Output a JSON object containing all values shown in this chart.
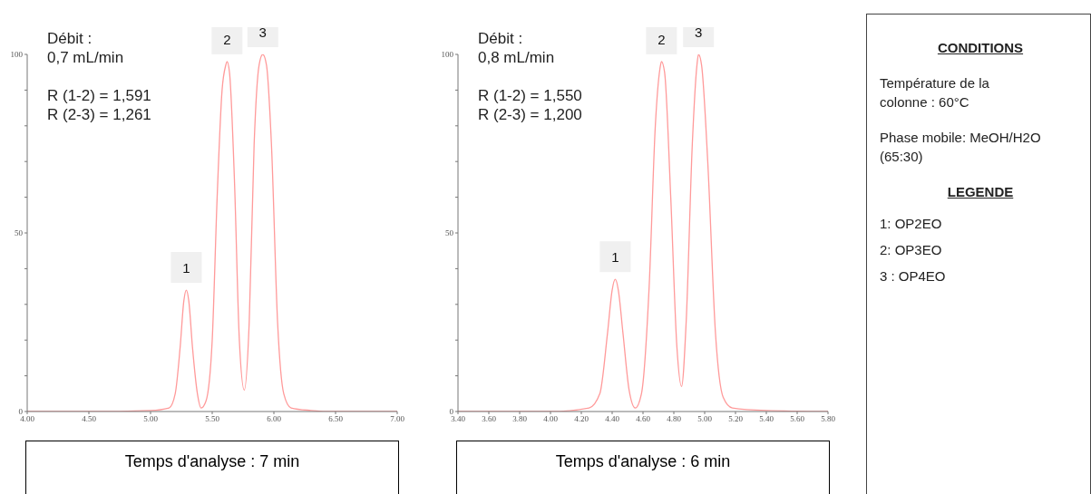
{
  "chart_data": [
    {
      "type": "line",
      "xlabel": "Temps d'analyse : 7 min",
      "xlim": [
        4,
        7
      ],
      "xticks": [
        {
          "value": 4,
          "label": "4.00"
        },
        {
          "value": 4.5,
          "label": "4.50"
        },
        {
          "value": 5,
          "label": "5.00"
        },
        {
          "value": 5.5,
          "label": "5.50"
        },
        {
          "value": 6,
          "label": "6.00"
        },
        {
          "value": 6.5,
          "label": "6.50"
        },
        {
          "value": 7,
          "label": "7.00"
        }
      ],
      "ylim": [
        0,
        100
      ],
      "yticks": [
        0,
        {
          "value": 10,
          "label": null
        },
        {
          "value": 20,
          "label": null
        },
        {
          "value": 30,
          "label": null
        },
        {
          "value": 40,
          "label": null
        },
        50,
        {
          "value": 60,
          "label": null
        },
        {
          "value": 70,
          "label": null
        },
        {
          "value": 80,
          "label": null
        },
        {
          "value": 90,
          "label": null
        },
        100
      ],
      "marker": "none",
      "line_style": "solid",
      "series": [
        {
          "color": "#ff9a9a",
          "x": [
            4.0,
            4.5,
            5.0,
            5.15,
            5.2,
            5.24,
            5.27,
            5.29,
            5.31,
            5.34,
            5.38,
            5.41,
            5.45,
            5.5,
            5.54,
            5.58,
            5.61,
            5.62,
            5.64,
            5.68,
            5.72,
            5.76,
            5.8,
            5.84,
            5.88,
            5.91,
            5.94,
            5.98,
            6.03,
            6.08,
            6.14,
            6.3,
            6.5,
            7.0
          ],
          "values": [
            0,
            0,
            0.3,
            1,
            5,
            18,
            31,
            34,
            31,
            18,
            5,
            1,
            3,
            20,
            60,
            90,
            97,
            98,
            95,
            65,
            20,
            6,
            25,
            75,
            97,
            100,
            97,
            75,
            25,
            5,
            1,
            0.3,
            0,
            0
          ]
        }
      ],
      "annotations": [
        "Débit :",
        "0,7 mL/min",
        "R (1-2) = 1,591",
        "R (2-3) = 1,261",
        {
          "text": "1",
          "x": 5.29,
          "y": 34
        },
        {
          "text": "2",
          "x": 5.62,
          "y": 98
        },
        {
          "text": "3",
          "x": 5.91,
          "y": 100
        }
      ]
    },
    {
      "type": "line",
      "xlabel": "Temps d'analyse : 6 min",
      "xlim": [
        3.4,
        5.8
      ],
      "xticks": [
        {
          "value": 3.4,
          "label": "3.40"
        },
        {
          "value": 3.6,
          "label": "3.60"
        },
        {
          "value": 3.8,
          "label": "3.80"
        },
        {
          "value": 4,
          "label": "4.00"
        },
        {
          "value": 4.2,
          "label": "4.20"
        },
        {
          "value": 4.4,
          "label": "4.40"
        },
        {
          "value": 4.6,
          "label": "4.60"
        },
        {
          "value": 4.8,
          "label": "4.80"
        },
        {
          "value": 5,
          "label": "5.00"
        },
        {
          "value": 5.2,
          "label": "5.20"
        },
        {
          "value": 5.4,
          "label": "5.40"
        },
        {
          "value": 5.6,
          "label": "5.60"
        },
        {
          "value": 5.8,
          "label": "5.80"
        }
      ],
      "ylim": [
        0,
        100
      ],
      "yticks": [
        0,
        {
          "value": 10,
          "label": null
        },
        {
          "value": 20,
          "label": null
        },
        {
          "value": 30,
          "label": null
        },
        {
          "value": 40,
          "label": null
        },
        50,
        {
          "value": 60,
          "label": null
        },
        {
          "value": 70,
          "label": null
        },
        {
          "value": 80,
          "label": null
        },
        {
          "value": 90,
          "label": null
        },
        100
      ],
      "marker": "none",
      "line_style": "solid",
      "series": [
        {
          "color": "#ff9a9a",
          "x": [
            3.4,
            4.0,
            4.25,
            4.32,
            4.37,
            4.4,
            4.42,
            4.44,
            4.47,
            4.51,
            4.55,
            4.59,
            4.64,
            4.68,
            4.71,
            4.72,
            4.74,
            4.78,
            4.82,
            4.85,
            4.88,
            4.92,
            4.95,
            4.96,
            4.98,
            5.02,
            5.07,
            5.12,
            5.18,
            5.4,
            5.8
          ],
          "values": [
            0,
            0,
            1,
            5,
            22,
            34,
            37,
            34,
            22,
            6,
            1,
            5,
            35,
            80,
            96,
            98,
            95,
            60,
            18,
            7,
            25,
            75,
            97,
            100,
            97,
            70,
            22,
            4,
            1,
            0.3,
            0
          ]
        }
      ],
      "annotations": [
        "Débit :",
        "0,8 mL/min",
        "R (1-2) = 1,550",
        "R (2-3) = 1,200",
        {
          "text": "1",
          "x": 4.42,
          "y": 37
        },
        {
          "text": "2",
          "x": 4.72,
          "y": 98
        },
        {
          "text": "3",
          "x": 4.96,
          "y": 100
        }
      ]
    },
    {
      "type": "other",
      "title": "CONDITIONS",
      "legend_title": "LEGENDE",
      "annotations": [
        "Température de la colonne : 60°C",
        "Phase mobile: MeOH/H2O (65:30)",
        "1: OP2EO",
        "2: OP3EO",
        "3 : OP4EO"
      ]
    }
  ]
}
